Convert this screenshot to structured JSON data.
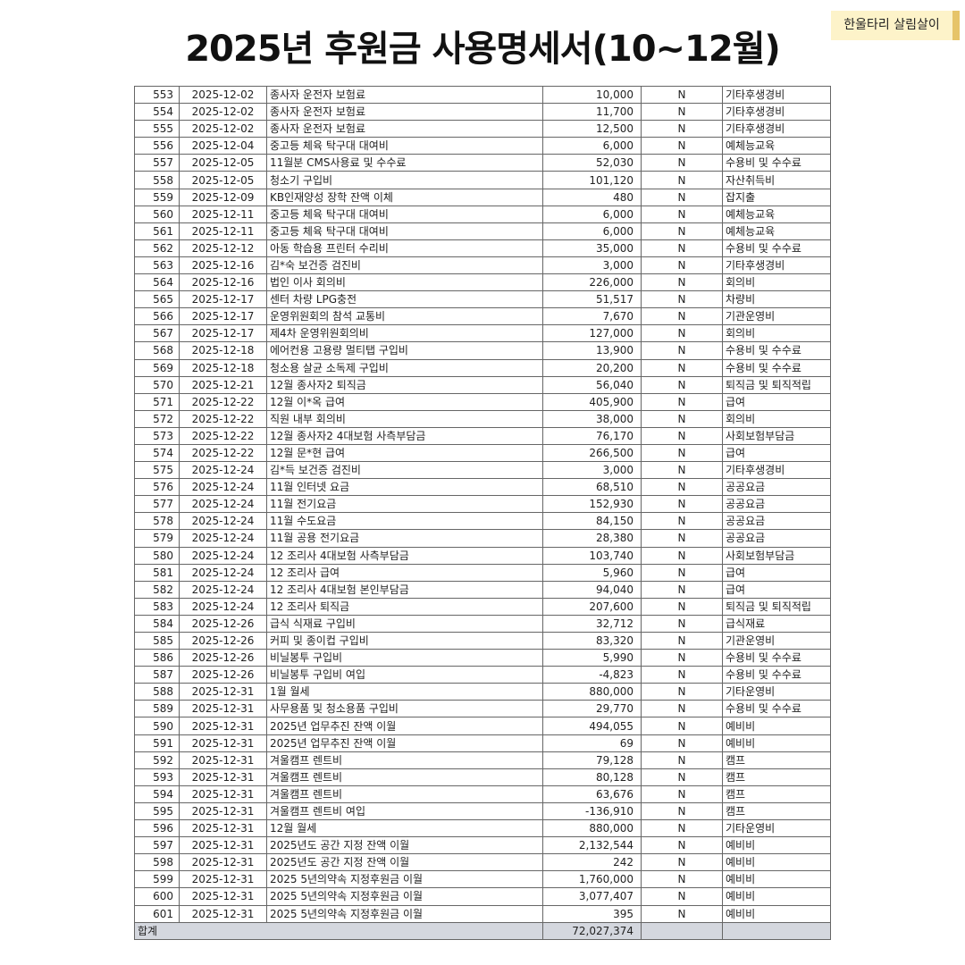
{
  "header": {
    "title": "2025년 후원금 사용명세서(10~12월)",
    "tag": "한울타리 살림살이"
  },
  "table": {
    "rows": [
      [
        "553",
        "2025-12-02",
        "종사자 운전자 보험료",
        "10,000",
        "N",
        "기타후생경비"
      ],
      [
        "554",
        "2025-12-02",
        "종사자 운전자 보험료",
        "11,700",
        "N",
        "기타후생경비"
      ],
      [
        "555",
        "2025-12-02",
        "종사자 운전자 보험료",
        "12,500",
        "N",
        "기타후생경비"
      ],
      [
        "556",
        "2025-12-04",
        "중고등 체육 탁구대 대여비",
        "6,000",
        "N",
        "예체능교육"
      ],
      [
        "557",
        "2025-12-05",
        "11월분 CMS사용료 및 수수료",
        "52,030",
        "N",
        "수용비 및 수수료"
      ],
      [
        "558",
        "2025-12-05",
        "청소기 구입비",
        "101,120",
        "N",
        "자산취득비"
      ],
      [
        "559",
        "2025-12-09",
        "KB인재양성 장학 잔액 이체",
        "480",
        "N",
        "잡지출"
      ],
      [
        "560",
        "2025-12-11",
        "중고등 체육 탁구대 대여비",
        "6,000",
        "N",
        "예체능교육"
      ],
      [
        "561",
        "2025-12-11",
        "중고등 체육 탁구대 대여비",
        "6,000",
        "N",
        "예체능교육"
      ],
      [
        "562",
        "2025-12-12",
        "아동 학습용 프린터 수리비",
        "35,000",
        "N",
        "수용비 및 수수료"
      ],
      [
        "563",
        "2025-12-16",
        "김*숙 보건증 검진비",
        "3,000",
        "N",
        "기타후생경비"
      ],
      [
        "564",
        "2025-12-16",
        "법인 이사 회의비",
        "226,000",
        "N",
        "회의비"
      ],
      [
        "565",
        "2025-12-17",
        "센터 차량 LPG충전",
        "51,517",
        "N",
        "차량비"
      ],
      [
        "566",
        "2025-12-17",
        "운영위원회의 참석 교통비",
        "7,670",
        "N",
        "기관운영비"
      ],
      [
        "567",
        "2025-12-17",
        "제4차 운영위원회의비",
        "127,000",
        "N",
        "회의비"
      ],
      [
        "568",
        "2025-12-18",
        "에어컨용 고용량 멀티탭 구입비",
        "13,900",
        "N",
        "수용비 및 수수료"
      ],
      [
        "569",
        "2025-12-18",
        "청소용 살균 소독제 구입비",
        "20,200",
        "N",
        "수용비 및 수수료"
      ],
      [
        "570",
        "2025-12-21",
        "12월 종사자2 퇴직금",
        "56,040",
        "N",
        "퇴직금 및 퇴직적립"
      ],
      [
        "571",
        "2025-12-22",
        "12월 이*옥 급여",
        "405,900",
        "N",
        "급여"
      ],
      [
        "572",
        "2025-12-22",
        "직원 내부 회의비",
        "38,000",
        "N",
        "회의비"
      ],
      [
        "573",
        "2025-12-22",
        "12월 종사자2 4대보험 사측부담금",
        "76,170",
        "N",
        "사회보험부담금"
      ],
      [
        "574",
        "2025-12-22",
        "12월 문*현 급여",
        "266,500",
        "N",
        "급여"
      ],
      [
        "575",
        "2025-12-24",
        "김*득 보건증 검진비",
        "3,000",
        "N",
        "기타후생경비"
      ],
      [
        "576",
        "2025-12-24",
        "11월 인터넷 요금",
        "68,510",
        "N",
        "공공요금"
      ],
      [
        "577",
        "2025-12-24",
        "11월 전기요금",
        "152,930",
        "N",
        "공공요금"
      ],
      [
        "578",
        "2025-12-24",
        "11월 수도요금",
        "84,150",
        "N",
        "공공요금"
      ],
      [
        "579",
        "2025-12-24",
        "11월 공용 전기요금",
        "28,380",
        "N",
        "공공요금"
      ],
      [
        "580",
        "2025-12-24",
        "12 조리사 4대보험 사측부담금",
        "103,740",
        "N",
        "사회보험부담금"
      ],
      [
        "581",
        "2025-12-24",
        "12 조리사 급여",
        "5,960",
        "N",
        "급여"
      ],
      [
        "582",
        "2025-12-24",
        "12 조리사 4대보험 본인부담금",
        "94,040",
        "N",
        "급여"
      ],
      [
        "583",
        "2025-12-24",
        "12 조리사 퇴직금",
        "207,600",
        "N",
        "퇴직금 및 퇴직적립"
      ],
      [
        "584",
        "2025-12-26",
        "급식 식재료 구입비",
        "32,712",
        "N",
        "급식재료"
      ],
      [
        "585",
        "2025-12-26",
        "커피 및 종이컵 구입비",
        "83,320",
        "N",
        "기관운영비"
      ],
      [
        "586",
        "2025-12-26",
        "비닐봉투 구입비",
        "5,990",
        "N",
        "수용비 및 수수료"
      ],
      [
        "587",
        "2025-12-26",
        "비닐봉투 구입비 여입",
        "-4,823",
        "N",
        "수용비 및 수수료"
      ],
      [
        "588",
        "2025-12-31",
        "1월 월세",
        "880,000",
        "N",
        "기타운영비"
      ],
      [
        "589",
        "2025-12-31",
        "사무용품 및 청소용품 구입비",
        "29,770",
        "N",
        "수용비 및 수수료"
      ],
      [
        "590",
        "2025-12-31",
        "2025년 업무추진 잔액 이월",
        "494,055",
        "N",
        "예비비"
      ],
      [
        "591",
        "2025-12-31",
        "2025년 업무추진 잔액 이월",
        "69",
        "N",
        "예비비"
      ],
      [
        "592",
        "2025-12-31",
        "겨울캠프 렌트비",
        "79,128",
        "N",
        "캠프"
      ],
      [
        "593",
        "2025-12-31",
        "겨울캠프 렌트비",
        "80,128",
        "N",
        "캠프"
      ],
      [
        "594",
        "2025-12-31",
        "겨울캠프 렌트비",
        "63,676",
        "N",
        "캠프"
      ],
      [
        "595",
        "2025-12-31",
        "겨울캠프 렌트비 여입",
        "-136,910",
        "N",
        "캠프"
      ],
      [
        "596",
        "2025-12-31",
        "12월 월세",
        "880,000",
        "N",
        "기타운영비"
      ],
      [
        "597",
        "2025-12-31",
        "2025년도 공간 지정 잔액 이월",
        "2,132,544",
        "N",
        "예비비"
      ],
      [
        "598",
        "2025-12-31",
        "2025년도 공간 지정 잔액 이월",
        "242",
        "N",
        "예비비"
      ],
      [
        "599",
        "2025-12-31",
        "2025 5년의약속 지정후원금 이월",
        "1,760,000",
        "N",
        "예비비"
      ],
      [
        "600",
        "2025-12-31",
        "2025 5년의약속 지정후원금 이월",
        "3,077,407",
        "N",
        "예비비"
      ],
      [
        "601",
        "2025-12-31",
        "2025 5년의약속 지정후원금 이월",
        "395",
        "N",
        "예비비"
      ]
    ],
    "total": {
      "label": "합계",
      "amount": "72,027,374"
    }
  }
}
